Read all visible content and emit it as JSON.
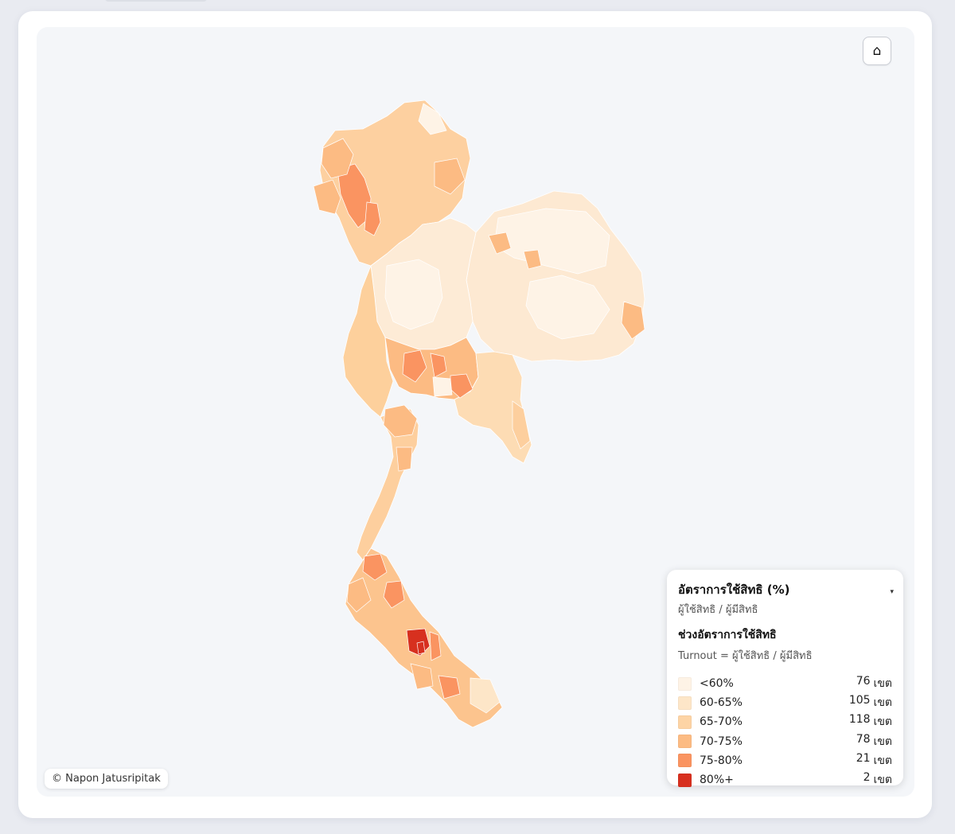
{
  "controls": {
    "home_icon": "⌂"
  },
  "credit": "© Napon Jatusripitak",
  "legend": {
    "title": "อัตราการใช้สิทธิ (%)",
    "subtitle": "ผู้ใช้สิทธิ / ผู้มีสิทธิ",
    "toggle_icon": "▾",
    "section_title": "ช่วงอัตราการใช้สิทธิ",
    "formula": "Turnout = ผู้ใช้สิทธิ / ผู้มีสิทธิ",
    "unit": "เขต",
    "bins": [
      {
        "label": "<60%",
        "count": "76",
        "color": "#fef3e6"
      },
      {
        "label": "60-65%",
        "count": "105",
        "color": "#fde6c8"
      },
      {
        "label": "65-70%",
        "count": "118",
        "color": "#fdd4a5"
      },
      {
        "label": "70-75%",
        "count": "78",
        "color": "#fcbb83"
      },
      {
        "label": "75-80%",
        "count": "21",
        "color": "#fa9461"
      },
      {
        "label": "80%+",
        "count": "2",
        "color": "#d7301f"
      }
    ]
  }
}
